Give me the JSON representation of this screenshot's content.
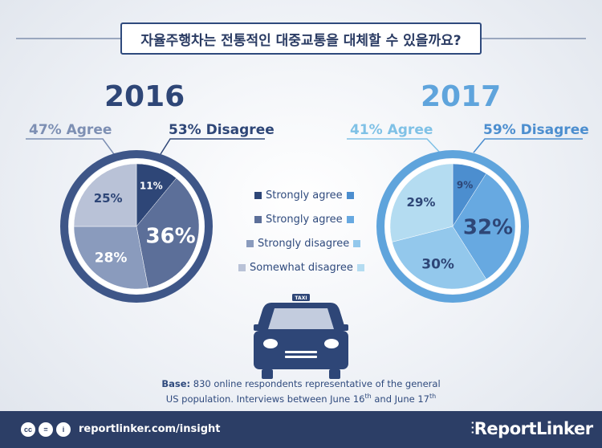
{
  "title": "자율주행차는 전통적인 대중교통을 대체할 수 있을까요?",
  "chart_data": [
    {
      "type": "pie",
      "title": "2016",
      "summary": [
        {
          "label": "47% Agree",
          "value": 47
        },
        {
          "label": "53% Disagree",
          "value": 53
        }
      ],
      "slices": [
        {
          "label": "11%",
          "value": 11,
          "category": "Strongly agree",
          "color": "#2e4677"
        },
        {
          "label": "36%",
          "value": 36,
          "category": "Strongly agree",
          "color": "#5c6f99"
        },
        {
          "label": "28%",
          "value": 28,
          "category": "Strongly disagree",
          "color": "#8a9bbd"
        },
        {
          "label": "25%",
          "value": 25,
          "category": "Somewhat disagree",
          "color": "#b9c2d7"
        }
      ]
    },
    {
      "type": "pie",
      "title": "2017",
      "summary": [
        {
          "label": "41% Agree",
          "value": 41
        },
        {
          "label": "59% Disagree",
          "value": 59
        }
      ],
      "slices": [
        {
          "label": "9%",
          "value": 9,
          "category": "Strongly agree",
          "color": "#4c8ecf"
        },
        {
          "label": "32%",
          "value": 32,
          "category": "Strongly agree",
          "color": "#67a9e1"
        },
        {
          "label": "30%",
          "value": 30,
          "category": "Strongly disagree",
          "color": "#93c8ec"
        },
        {
          "label": "29%",
          "value": 29,
          "category": "Somewhat disagree",
          "color": "#b4dcf1"
        }
      ]
    }
  ],
  "legend": [
    {
      "label": "Strongly agree",
      "color_2016": "#2e4677",
      "color_2017": "#4c8ecf"
    },
    {
      "label": "Strongly agree",
      "color_2016": "#5c6f99",
      "color_2017": "#67a9e1"
    },
    {
      "label": "Strongly disagree",
      "color_2016": "#8a9bbd",
      "color_2017": "#93c8ec"
    },
    {
      "label": "Somewhat disagree",
      "color_2016": "#b9c2d7",
      "color_2017": "#b4dcf1"
    }
  ],
  "taxi_sign": "TAXI",
  "base": {
    "label": "Base:",
    "line1": " 830 online respondents representative of the general",
    "line2_a": "US population. Interviews between June 16",
    "line2_sup1": "th",
    "line2_b": " and June 17",
    "line2_sup2": "th"
  },
  "footer": {
    "url": "reportlinker.com/insight",
    "logo": "ReportLinker",
    "cc_icons": [
      "cc",
      "=",
      "i"
    ]
  }
}
